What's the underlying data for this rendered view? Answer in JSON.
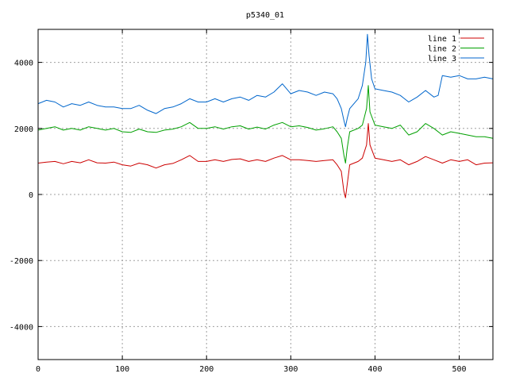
{
  "chart_data": {
    "type": "line",
    "title": "p5340_01",
    "xlabel": "",
    "ylabel": "",
    "xlim": [
      0,
      540
    ],
    "ylim": [
      -5000,
      5000
    ],
    "xticks": [
      0,
      100,
      200,
      300,
      400,
      500
    ],
    "yticks": [
      -4000,
      -2000,
      0,
      2000,
      4000
    ],
    "grid": true,
    "legend_position": "top-right",
    "series": [
      {
        "name": "line 1",
        "color": "#cc0000",
        "points": [
          [
            0,
            950
          ],
          [
            10,
            980
          ],
          [
            20,
            1000
          ],
          [
            30,
            930
          ],
          [
            40,
            1000
          ],
          [
            50,
            960
          ],
          [
            60,
            1050
          ],
          [
            70,
            960
          ],
          [
            80,
            950
          ],
          [
            90,
            980
          ],
          [
            100,
            900
          ],
          [
            110,
            860
          ],
          [
            120,
            950
          ],
          [
            130,
            900
          ],
          [
            140,
            800
          ],
          [
            150,
            900
          ],
          [
            160,
            940
          ],
          [
            170,
            1050
          ],
          [
            180,
            1180
          ],
          [
            190,
            1000
          ],
          [
            200,
            1000
          ],
          [
            210,
            1050
          ],
          [
            220,
            1000
          ],
          [
            230,
            1060
          ],
          [
            240,
            1080
          ],
          [
            250,
            1000
          ],
          [
            260,
            1050
          ],
          [
            270,
            1000
          ],
          [
            280,
            1100
          ],
          [
            290,
            1180
          ],
          [
            300,
            1050
          ],
          [
            310,
            1050
          ],
          [
            320,
            1030
          ],
          [
            330,
            1000
          ],
          [
            340,
            1030
          ],
          [
            350,
            1050
          ],
          [
            355,
            900
          ],
          [
            360,
            700
          ],
          [
            363,
            100
          ],
          [
            365,
            -100
          ],
          [
            367,
            300
          ],
          [
            370,
            900
          ],
          [
            380,
            1000
          ],
          [
            385,
            1100
          ],
          [
            390,
            1500
          ],
          [
            392,
            2150
          ],
          [
            394,
            1500
          ],
          [
            400,
            1100
          ],
          [
            410,
            1050
          ],
          [
            420,
            1000
          ],
          [
            430,
            1050
          ],
          [
            440,
            900
          ],
          [
            450,
            1000
          ],
          [
            460,
            1150
          ],
          [
            470,
            1050
          ],
          [
            480,
            950
          ],
          [
            490,
            1050
          ],
          [
            500,
            1000
          ],
          [
            510,
            1050
          ],
          [
            520,
            900
          ],
          [
            530,
            950
          ],
          [
            540,
            960
          ]
        ]
      },
      {
        "name": "line 2",
        "color": "#00a000",
        "points": [
          [
            0,
            1950
          ],
          [
            10,
            2000
          ],
          [
            20,
            2050
          ],
          [
            30,
            1950
          ],
          [
            40,
            2000
          ],
          [
            50,
            1950
          ],
          [
            60,
            2050
          ],
          [
            70,
            2000
          ],
          [
            80,
            1950
          ],
          [
            90,
            2000
          ],
          [
            100,
            1900
          ],
          [
            110,
            1880
          ],
          [
            120,
            1980
          ],
          [
            130,
            1900
          ],
          [
            140,
            1880
          ],
          [
            150,
            1950
          ],
          [
            160,
            1980
          ],
          [
            170,
            2050
          ],
          [
            180,
            2180
          ],
          [
            190,
            2000
          ],
          [
            200,
            2000
          ],
          [
            210,
            2050
          ],
          [
            220,
            1980
          ],
          [
            230,
            2050
          ],
          [
            240,
            2080
          ],
          [
            250,
            1980
          ],
          [
            260,
            2040
          ],
          [
            270,
            1980
          ],
          [
            280,
            2100
          ],
          [
            290,
            2180
          ],
          [
            300,
            2050
          ],
          [
            310,
            2080
          ],
          [
            320,
            2030
          ],
          [
            330,
            1950
          ],
          [
            340,
            1990
          ],
          [
            350,
            2050
          ],
          [
            355,
            1900
          ],
          [
            360,
            1700
          ],
          [
            363,
            1200
          ],
          [
            365,
            950
          ],
          [
            367,
            1400
          ],
          [
            370,
            1900
          ],
          [
            380,
            2000
          ],
          [
            385,
            2100
          ],
          [
            390,
            2600
          ],
          [
            392,
            3300
          ],
          [
            394,
            2500
          ],
          [
            400,
            2100
          ],
          [
            410,
            2050
          ],
          [
            420,
            2000
          ],
          [
            430,
            2100
          ],
          [
            440,
            1800
          ],
          [
            450,
            1900
          ],
          [
            460,
            2150
          ],
          [
            470,
            2000
          ],
          [
            480,
            1800
          ],
          [
            490,
            1900
          ],
          [
            500,
            1850
          ],
          [
            510,
            1800
          ],
          [
            520,
            1750
          ],
          [
            530,
            1750
          ],
          [
            540,
            1700
          ]
        ]
      },
      {
        "name": "line 3",
        "color": "#0066cc",
        "points": [
          [
            0,
            2750
          ],
          [
            10,
            2850
          ],
          [
            20,
            2800
          ],
          [
            30,
            2650
          ],
          [
            40,
            2750
          ],
          [
            50,
            2700
          ],
          [
            60,
            2800
          ],
          [
            70,
            2700
          ],
          [
            80,
            2650
          ],
          [
            90,
            2650
          ],
          [
            100,
            2600
          ],
          [
            110,
            2600
          ],
          [
            120,
            2700
          ],
          [
            130,
            2550
          ],
          [
            140,
            2450
          ],
          [
            150,
            2600
          ],
          [
            160,
            2650
          ],
          [
            170,
            2750
          ],
          [
            180,
            2900
          ],
          [
            190,
            2800
          ],
          [
            200,
            2800
          ],
          [
            210,
            2900
          ],
          [
            220,
            2800
          ],
          [
            230,
            2900
          ],
          [
            240,
            2950
          ],
          [
            250,
            2850
          ],
          [
            260,
            3000
          ],
          [
            270,
            2950
          ],
          [
            280,
            3100
          ],
          [
            290,
            3350
          ],
          [
            300,
            3050
          ],
          [
            310,
            3150
          ],
          [
            320,
            3100
          ],
          [
            330,
            3000
          ],
          [
            340,
            3100
          ],
          [
            350,
            3050
          ],
          [
            355,
            2900
          ],
          [
            360,
            2600
          ],
          [
            363,
            2250
          ],
          [
            365,
            2050
          ],
          [
            367,
            2300
          ],
          [
            370,
            2600
          ],
          [
            380,
            2900
          ],
          [
            385,
            3300
          ],
          [
            389,
            4000
          ],
          [
            391,
            4850
          ],
          [
            393,
            4200
          ],
          [
            396,
            3500
          ],
          [
            400,
            3200
          ],
          [
            410,
            3150
          ],
          [
            420,
            3100
          ],
          [
            430,
            3000
          ],
          [
            440,
            2800
          ],
          [
            450,
            2950
          ],
          [
            460,
            3150
          ],
          [
            470,
            2950
          ],
          [
            475,
            3000
          ],
          [
            480,
            3600
          ],
          [
            490,
            3550
          ],
          [
            500,
            3600
          ],
          [
            510,
            3500
          ],
          [
            520,
            3500
          ],
          [
            530,
            3550
          ],
          [
            540,
            3500
          ]
        ]
      }
    ]
  }
}
